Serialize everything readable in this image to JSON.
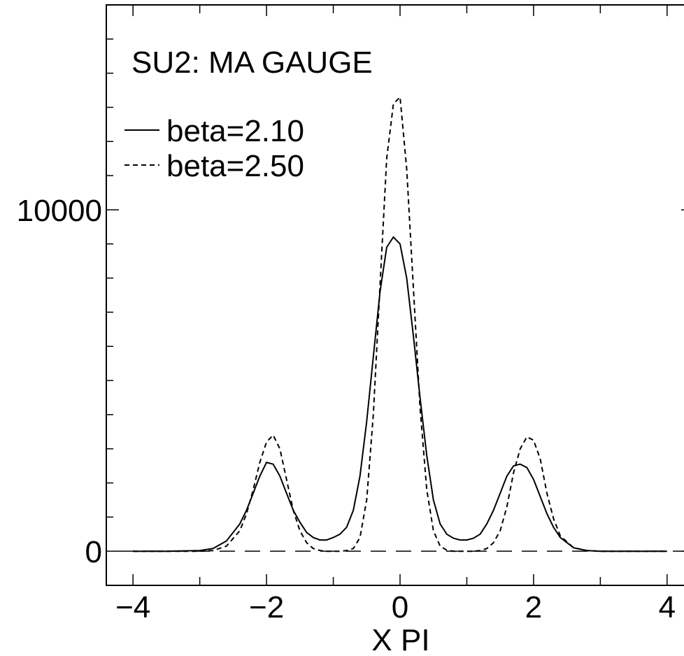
{
  "chart_data": {
    "type": "line",
    "title": "SU2: MA GAUGE",
    "xlabel": "X PI",
    "ylabel": "",
    "xlim": [
      -4.4,
      4.4
    ],
    "ylim": [
      -1000,
      16000
    ],
    "x_ticks": [
      -4,
      -2,
      0,
      2,
      4
    ],
    "x_tick_labels": [
      "−4",
      "−2",
      "0",
      "2",
      "4"
    ],
    "y_ticks": [
      0,
      10000
    ],
    "y_tick_labels": [
      "0",
      "10000"
    ],
    "y_minor_step": 1000,
    "x_minor_step": 1,
    "grid": false,
    "reference_line": {
      "y": 0,
      "style": "dashed"
    },
    "legend": {
      "position": "top-left"
    },
    "series": [
      {
        "name": "beta=2.10",
        "line_style": "solid",
        "x": [
          -4.0,
          -3.5,
          -3.0,
          -2.8,
          -2.6,
          -2.4,
          -2.3,
          -2.2,
          -2.1,
          -2.0,
          -1.9,
          -1.8,
          -1.7,
          -1.6,
          -1.5,
          -1.4,
          -1.3,
          -1.2,
          -1.1,
          -1.0,
          -0.9,
          -0.8,
          -0.7,
          -0.6,
          -0.5,
          -0.4,
          -0.3,
          -0.2,
          -0.1,
          0.0,
          0.1,
          0.2,
          0.3,
          0.4,
          0.5,
          0.6,
          0.7,
          0.8,
          0.9,
          1.0,
          1.1,
          1.2,
          1.3,
          1.4,
          1.5,
          1.6,
          1.7,
          1.8,
          1.9,
          2.0,
          2.1,
          2.2,
          2.3,
          2.4,
          2.6,
          2.8,
          3.0,
          3.5,
          4.0
        ],
        "y": [
          0,
          0,
          20,
          80,
          300,
          800,
          1200,
          1700,
          2200,
          2600,
          2550,
          2200,
          1700,
          1200,
          850,
          550,
          400,
          330,
          330,
          400,
          500,
          700,
          1200,
          2200,
          3800,
          5700,
          7600,
          8900,
          9200,
          9000,
          8000,
          6300,
          4500,
          2800,
          1500,
          800,
          500,
          380,
          330,
          330,
          380,
          500,
          800,
          1200,
          1700,
          2200,
          2500,
          2550,
          2450,
          2100,
          1600,
          1100,
          700,
          400,
          100,
          20,
          0,
          0,
          0
        ]
      },
      {
        "name": "beta=2.50",
        "line_style": "dashed",
        "x": [
          -4.0,
          -3.5,
          -3.0,
          -2.8,
          -2.6,
          -2.4,
          -2.3,
          -2.2,
          -2.1,
          -2.0,
          -1.9,
          -1.8,
          -1.7,
          -1.6,
          -1.5,
          -1.4,
          -1.3,
          -1.2,
          -1.1,
          -1.0,
          -0.9,
          -0.8,
          -0.7,
          -0.6,
          -0.5,
          -0.4,
          -0.3,
          -0.2,
          -0.1,
          0.0,
          0.1,
          0.2,
          0.3,
          0.4,
          0.5,
          0.6,
          0.7,
          0.8,
          0.9,
          1.0,
          1.1,
          1.2,
          1.3,
          1.4,
          1.5,
          1.6,
          1.7,
          1.8,
          1.9,
          2.0,
          2.1,
          2.2,
          2.3,
          2.4,
          2.6,
          2.8,
          3.0,
          3.5,
          4.0
        ],
        "y": [
          0,
          0,
          0,
          20,
          150,
          600,
          1100,
          1800,
          2600,
          3200,
          3400,
          3000,
          2100,
          1200,
          600,
          250,
          80,
          20,
          0,
          0,
          0,
          20,
          80,
          400,
          1500,
          4000,
          7800,
          11500,
          13100,
          13300,
          11200,
          7700,
          4200,
          1800,
          600,
          150,
          30,
          0,
          0,
          0,
          0,
          20,
          80,
          250,
          600,
          1300,
          2300,
          3000,
          3350,
          3250,
          2700,
          1700,
          950,
          450,
          100,
          20,
          0,
          0,
          0
        ]
      }
    ]
  }
}
